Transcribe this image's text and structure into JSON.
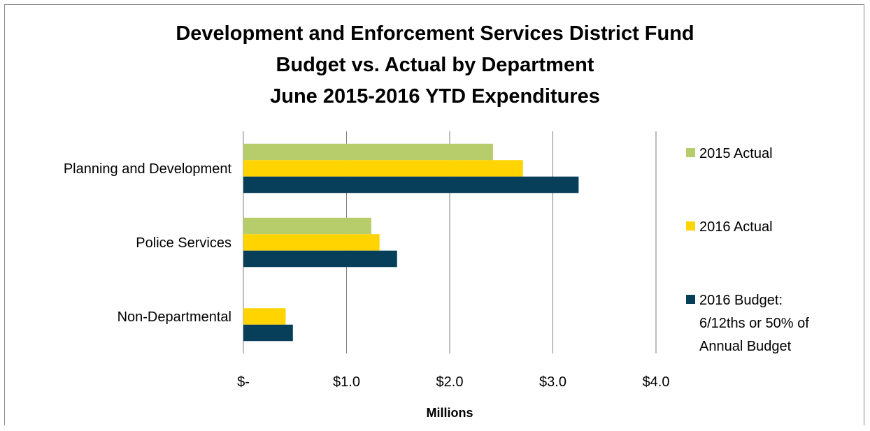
{
  "chart_data": {
    "type": "bar",
    "orientation": "horizontal",
    "title_lines": [
      "Development and Enforcement Services District Fund",
      "Budget vs. Actual by Department",
      "June 2015-2016 YTD Expenditures"
    ],
    "categories": [
      "Planning and Development",
      "Police Services",
      "Non-Departmental"
    ],
    "series": [
      {
        "name": "2015 Actual",
        "color": "#b7cc6b",
        "values": [
          2.42,
          1.24,
          0
        ]
      },
      {
        "name": "2016 Actual",
        "color": "#ffd400",
        "values": [
          2.71,
          1.32,
          0.41
        ]
      },
      {
        "name": "2016 Budget: 6/12ths or 50% of Annual Budget",
        "name_lines": [
          "2016 Budget:",
          "6/12ths or 50% of",
          "Annual Budget"
        ],
        "color": "#073f5a",
        "values": [
          3.25,
          1.49,
          0.48
        ]
      }
    ],
    "xlabel": "Millions",
    "xlim": [
      0,
      4
    ],
    "xticks": [
      0,
      1,
      2,
      3,
      4
    ],
    "xtick_labels": [
      "$-",
      "$1.0",
      "$2.0",
      "$3.0",
      "$4.0"
    ],
    "grid": "vertical",
    "legend": "right"
  }
}
